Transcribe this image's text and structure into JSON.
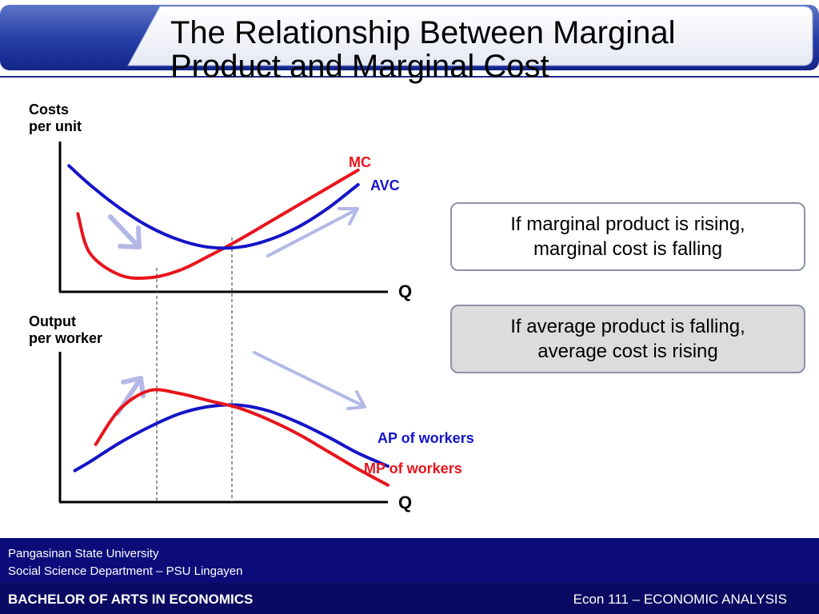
{
  "slide": {
    "title_line1": "The Relationship Between Marginal",
    "title_line2": "Product and Marginal Cost"
  },
  "callouts": {
    "mp_line1": "If marginal product is rising,",
    "mp_line2": "marginal cost is falling",
    "ap_line1": "If average product is falling,",
    "ap_line2": "average cost is rising"
  },
  "footer": {
    "university": "Pangasinan State University",
    "department": "Social Science  Department – PSU Lingayen",
    "program": "BACHELOR OF ARTS IN ECONOMICS",
    "course": "Econ 111 – ECONOMIC ANALYSIS"
  },
  "colors": {
    "mc_mp": "#e8141c",
    "avc_ap": "#1414c8",
    "arrow": "#b3b8e6",
    "footer_bg": "#06064f"
  },
  "chart_data": [
    {
      "type": "line",
      "title": "",
      "ylabel_line1": "Costs",
      "ylabel_line2": "per unit",
      "xlabel": "Q",
      "grid": false,
      "series": [
        {
          "name": "MC",
          "color": "#e8141c",
          "x": [
            0.6,
            1,
            2,
            3,
            4,
            5,
            6,
            7,
            8,
            9,
            10
          ],
          "y": [
            5.2,
            2.5,
            1.0,
            0.8,
            1.3,
            2.3,
            3.4,
            4.6,
            5.8,
            7.0,
            8.2
          ]
        },
        {
          "name": "AVC",
          "color": "#1414c8",
          "x": [
            0.3,
            1,
            2,
            3,
            4,
            5,
            6,
            7,
            8,
            9,
            10
          ],
          "y": [
            8.5,
            7.2,
            5.6,
            4.3,
            3.4,
            2.9,
            2.9,
            3.4,
            4.3,
            5.6,
            7.2
          ]
        }
      ],
      "xlim": [
        0,
        11
      ],
      "ylim": [
        0,
        10
      ],
      "annotations": [
        "MC",
        "AVC"
      ]
    },
    {
      "type": "line",
      "title": "",
      "ylabel_line1": "Output",
      "ylabel_line2": "per worker",
      "xlabel": "Q",
      "grid": false,
      "series": [
        {
          "name": "AP of workers",
          "color": "#1414c8",
          "x": [
            0.5,
            1,
            2,
            3,
            4,
            5,
            6,
            7,
            8,
            9,
            10,
            11
          ],
          "y": [
            2.0,
            2.6,
            3.9,
            5.0,
            5.9,
            6.4,
            6.5,
            6.1,
            5.3,
            4.3,
            3.2,
            2.3
          ]
        },
        {
          "name": "MP of workers",
          "color": "#e8141c",
          "x": [
            1.2,
            2,
            3,
            4,
            5,
            6,
            7,
            8,
            9,
            10,
            11
          ],
          "y": [
            3.8,
            6.2,
            7.5,
            7.3,
            6.8,
            6.3,
            5.5,
            4.5,
            3.3,
            2.1,
            1.0
          ]
        }
      ],
      "xlim": [
        0,
        11
      ],
      "ylim": [
        0,
        10
      ],
      "annotations": [
        "AP of workers",
        "MP of workers"
      ]
    }
  ]
}
